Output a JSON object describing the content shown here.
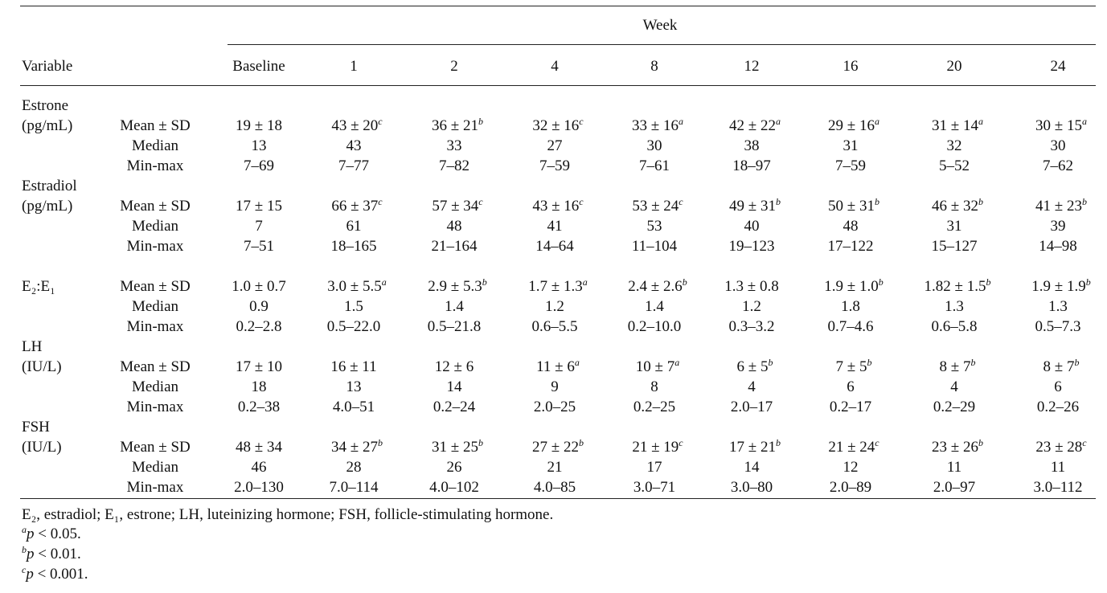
{
  "table": {
    "header": {
      "group": "Week",
      "variable": "Variable",
      "columns": [
        "Baseline",
        "1",
        "2",
        "4",
        "8",
        "12",
        "16",
        "20",
        "24"
      ]
    },
    "sections": [
      {
        "name": [
          "Estrone",
          "(pg/mL)"
        ],
        "rows": [
          {
            "stat": "Mean ± SD",
            "cells": [
              {
                "text": "19 ± 18"
              },
              {
                "text": "43 ± 20",
                "sup": "c"
              },
              {
                "text": "36 ± 21",
                "sup": "b"
              },
              {
                "text": "32 ± 16",
                "sup": "c"
              },
              {
                "text": "33 ± 16",
                "sup": "a"
              },
              {
                "text": "42 ± 22",
                "sup": "a"
              },
              {
                "text": "29 ± 16",
                "sup": "a"
              },
              {
                "text": "31 ± 14",
                "sup": "a"
              },
              {
                "text": "30 ± 15",
                "sup": "a"
              }
            ]
          },
          {
            "stat": "Median",
            "cells": [
              {
                "text": "13"
              },
              {
                "text": "43"
              },
              {
                "text": "33"
              },
              {
                "text": "27"
              },
              {
                "text": "30"
              },
              {
                "text": "38"
              },
              {
                "text": "31"
              },
              {
                "text": "32"
              },
              {
                "text": "30"
              }
            ]
          },
          {
            "stat": "Min-max",
            "cells": [
              {
                "text": "7–69"
              },
              {
                "text": "7–77"
              },
              {
                "text": "7–82"
              },
              {
                "text": "7–59"
              },
              {
                "text": "7–61"
              },
              {
                "text": "18–97"
              },
              {
                "text": "7–59"
              },
              {
                "text": "5–52"
              },
              {
                "text": "7–62"
              }
            ]
          }
        ]
      },
      {
        "name": [
          "Estradiol",
          "(pg/mL)"
        ],
        "rows": [
          {
            "stat": "Mean ± SD",
            "cells": [
              {
                "text": "17 ± 15"
              },
              {
                "text": "66 ± 37",
                "sup": "c"
              },
              {
                "text": "57 ± 34",
                "sup": "c"
              },
              {
                "text": "43 ± 16",
                "sup": "c"
              },
              {
                "text": "53 ± 24",
                "sup": "c"
              },
              {
                "text": "49 ± 31",
                "sup": "b"
              },
              {
                "text": "50 ± 31",
                "sup": "b"
              },
              {
                "text": "46 ± 32",
                "sup": "b"
              },
              {
                "text": "41 ± 23",
                "sup": "b"
              }
            ]
          },
          {
            "stat": "Median",
            "cells": [
              {
                "text": "7"
              },
              {
                "text": "61"
              },
              {
                "text": "48"
              },
              {
                "text": "41"
              },
              {
                "text": "53"
              },
              {
                "text": "40"
              },
              {
                "text": "48"
              },
              {
                "text": "31"
              },
              {
                "text": "39"
              }
            ]
          },
          {
            "stat": "Min-max",
            "cells": [
              {
                "text": "7–51"
              },
              {
                "text": "18–165"
              },
              {
                "text": "21–164"
              },
              {
                "text": "14–64"
              },
              {
                "text": "11–104"
              },
              {
                "text": "19–123"
              },
              {
                "text": "17–122"
              },
              {
                "text": "15–127"
              },
              {
                "text": "14–98"
              }
            ]
          }
        ]
      },
      {
        "name": [
          "E₂:E₁"
        ],
        "rows": [
          {
            "stat": "Mean ± SD",
            "cells": [
              {
                "text": "1.0 ± 0.7"
              },
              {
                "text": "3.0 ± 5.5",
                "sup": "a"
              },
              {
                "text": "2.9 ± 5.3",
                "sup": "b"
              },
              {
                "text": "1.7 ± 1.3",
                "sup": "a"
              },
              {
                "text": "2.4 ± 2.6",
                "sup": "b"
              },
              {
                "text": "1.3 ± 0.8"
              },
              {
                "text": "1.9 ± 1.0",
                "sup": "b"
              },
              {
                "text": "1.82 ± 1.5",
                "sup": "b"
              },
              {
                "text": "1.9 ± 1.9",
                "sup": "b"
              }
            ]
          },
          {
            "stat": "Median",
            "cells": [
              {
                "text": "0.9"
              },
              {
                "text": "1.5"
              },
              {
                "text": "1.4"
              },
              {
                "text": "1.2"
              },
              {
                "text": "1.4"
              },
              {
                "text": "1.2"
              },
              {
                "text": "1.8"
              },
              {
                "text": "1.3"
              },
              {
                "text": "1.3"
              }
            ]
          },
          {
            "stat": "Min-max",
            "cells": [
              {
                "text": "0.2–2.8"
              },
              {
                "text": "0.5–22.0"
              },
              {
                "text": "0.5–21.8"
              },
              {
                "text": "0.6–5.5"
              },
              {
                "text": "0.2–10.0"
              },
              {
                "text": "0.3–3.2"
              },
              {
                "text": "0.7–4.6"
              },
              {
                "text": "0.6–5.8"
              },
              {
                "text": "0.5–7.3"
              }
            ]
          }
        ]
      },
      {
        "name": [
          "LH",
          "(IU/L)"
        ],
        "rows": [
          {
            "stat": "Mean ± SD",
            "cells": [
              {
                "text": "17 ± 10"
              },
              {
                "text": "16 ± 11"
              },
              {
                "text": "12 ± 6"
              },
              {
                "text": "11 ± 6",
                "sup": "a"
              },
              {
                "text": "10 ± 7",
                "sup": "a"
              },
              {
                "text": "6 ± 5",
                "sup": "b"
              },
              {
                "text": "7 ± 5",
                "sup": "b"
              },
              {
                "text": "8 ± 7",
                "sup": "b"
              },
              {
                "text": "8 ± 7",
                "sup": "b"
              }
            ]
          },
          {
            "stat": "Median",
            "cells": [
              {
                "text": "18"
              },
              {
                "text": "13"
              },
              {
                "text": "14"
              },
              {
                "text": "9"
              },
              {
                "text": "8"
              },
              {
                "text": "4"
              },
              {
                "text": "6"
              },
              {
                "text": "4"
              },
              {
                "text": "6"
              }
            ]
          },
          {
            "stat": "Min-max",
            "cells": [
              {
                "text": "0.2–38"
              },
              {
                "text": "4.0–51"
              },
              {
                "text": "0.2–24"
              },
              {
                "text": "2.0–25"
              },
              {
                "text": "0.2–25"
              },
              {
                "text": "2.0–17"
              },
              {
                "text": "0.2–17"
              },
              {
                "text": "0.2–29"
              },
              {
                "text": "0.2–26"
              }
            ]
          }
        ]
      },
      {
        "name": [
          "FSH",
          "(IU/L)"
        ],
        "rows": [
          {
            "stat": "Mean ± SD",
            "cells": [
              {
                "text": "48 ± 34"
              },
              {
                "text": "34 ± 27",
                "sup": "b"
              },
              {
                "text": "31 ± 25",
                "sup": "b"
              },
              {
                "text": "27 ± 22",
                "sup": "b"
              },
              {
                "text": "21 ± 19",
                "sup": "c"
              },
              {
                "text": "17 ± 21",
                "sup": "b"
              },
              {
                "text": "21 ± 24",
                "sup": "c"
              },
              {
                "text": "23 ± 26",
                "sup": "b"
              },
              {
                "text": "23 ± 28",
                "sup": "c"
              }
            ]
          },
          {
            "stat": "Median",
            "cells": [
              {
                "text": "46"
              },
              {
                "text": "28"
              },
              {
                "text": "26"
              },
              {
                "text": "21"
              },
              {
                "text": "17"
              },
              {
                "text": "14"
              },
              {
                "text": "12"
              },
              {
                "text": "11"
              },
              {
                "text": "11"
              }
            ]
          },
          {
            "stat": "Min-max",
            "cells": [
              {
                "text": "2.0–130"
              },
              {
                "text": "7.0–114"
              },
              {
                "text": "4.0–102"
              },
              {
                "text": "4.0–85"
              },
              {
                "text": "3.0–71"
              },
              {
                "text": "3.0–80"
              },
              {
                "text": "2.0–89"
              },
              {
                "text": "2.0–97"
              },
              {
                "text": "3.0–112"
              }
            ]
          }
        ]
      }
    ],
    "footnotes": [
      {
        "text": "E₂, estradiol; E₁, estrone; LH, luteinizing hormone; FSH, follicle-stimulating hormone."
      },
      {
        "mark": "a",
        "var": "p",
        "text": " < 0.05."
      },
      {
        "mark": "b",
        "var": "p",
        "text": " < 0.01."
      },
      {
        "mark": "c",
        "var": "p",
        "text": " < 0.001."
      }
    ]
  }
}
